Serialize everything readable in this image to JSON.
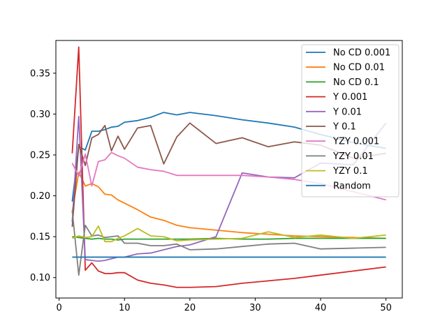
{
  "chart_data": {
    "type": "line",
    "title": "",
    "xlabel": "",
    "ylabel": "",
    "xlim": [
      -0.5,
      52.5
    ],
    "ylim": [
      0.075,
      0.39
    ],
    "xticks": [
      0,
      10,
      20,
      30,
      40,
      50
    ],
    "yticks": [
      0.1,
      0.15,
      0.2,
      0.25,
      0.3,
      0.35
    ],
    "grid": false,
    "legend_position": "top-right",
    "series": [
      {
        "name": "No CD 0.001",
        "color": "#1f77b4",
        "x": [
          2,
          3,
          4,
          5,
          6,
          7,
          8,
          9,
          10,
          12,
          14,
          16,
          18,
          20,
          24,
          28,
          32,
          36,
          40,
          45,
          50
        ],
        "y": [
          0.193,
          0.26,
          0.256,
          0.279,
          0.279,
          0.281,
          0.284,
          0.285,
          0.29,
          0.292,
          0.296,
          0.302,
          0.299,
          0.302,
          0.298,
          0.293,
          0.289,
          0.284,
          0.275,
          0.265,
          0.258
        ]
      },
      {
        "name": "No CD 0.01",
        "color": "#ff7f0e",
        "x": [
          2,
          3,
          4,
          5,
          6,
          7,
          8,
          9,
          10,
          12,
          14,
          16,
          18,
          20,
          24,
          28,
          32,
          36,
          40,
          45,
          50
        ],
        "y": [
          0.18,
          0.229,
          0.212,
          0.215,
          0.211,
          0.202,
          0.201,
          0.195,
          0.191,
          0.183,
          0.174,
          0.17,
          0.164,
          0.161,
          0.158,
          0.155,
          0.153,
          0.151,
          0.15,
          0.149,
          0.148
        ]
      },
      {
        "name": "No CD 0.1",
        "color": "#2ca02c",
        "x": [
          2,
          3,
          4,
          5,
          6,
          7,
          8,
          9,
          10,
          12,
          14,
          16,
          18,
          20,
          24,
          28,
          32,
          36,
          40,
          45,
          50
        ],
        "y": [
          0.15,
          0.149,
          0.148,
          0.147,
          0.148,
          0.147,
          0.147,
          0.146,
          0.147,
          0.147,
          0.147,
          0.147,
          0.147,
          0.147,
          0.148,
          0.147,
          0.147,
          0.148,
          0.148,
          0.148,
          0.148
        ]
      },
      {
        "name": "Y 0.001",
        "color": "#d62728",
        "x": [
          2,
          3,
          4,
          5,
          6,
          7,
          8,
          9,
          10,
          12,
          14,
          16,
          18,
          20,
          24,
          28,
          32,
          36,
          40,
          45,
          50
        ],
        "y": [
          0.252,
          0.382,
          0.109,
          0.118,
          0.108,
          0.105,
          0.105,
          0.106,
          0.106,
          0.097,
          0.093,
          0.091,
          0.088,
          0.088,
          0.089,
          0.093,
          0.096,
          0.099,
          0.103,
          0.108,
          0.113
        ]
      },
      {
        "name": "Y 0.01",
        "color": "#9467bd",
        "x": [
          2,
          3,
          4,
          5,
          6,
          7,
          8,
          9,
          10,
          12,
          14,
          16,
          18,
          20,
          24,
          28,
          32,
          36,
          40,
          45,
          50
        ],
        "y": [
          0.168,
          0.297,
          0.122,
          0.121,
          0.12,
          0.121,
          0.123,
          0.125,
          0.125,
          0.129,
          0.13,
          0.134,
          0.138,
          0.14,
          0.15,
          0.228,
          0.223,
          0.222,
          0.24,
          0.238,
          0.289
        ]
      },
      {
        "name": "Y 0.1",
        "color": "#8c564b",
        "x": [
          2,
          3,
          4,
          5,
          6,
          7,
          8,
          9,
          10,
          12,
          14,
          16,
          18,
          20,
          24,
          28,
          32,
          36,
          40,
          45,
          50
        ],
        "y": [
          0.162,
          0.263,
          0.237,
          0.271,
          0.275,
          0.286,
          0.255,
          0.273,
          0.257,
          0.283,
          0.286,
          0.239,
          0.272,
          0.289,
          0.264,
          0.271,
          0.26,
          0.266,
          0.262,
          0.246,
          0.252
        ]
      },
      {
        "name": "YZY 0.001",
        "color": "#e377c2",
        "x": [
          2,
          3,
          4,
          5,
          6,
          7,
          8,
          9,
          10,
          12,
          14,
          16,
          18,
          20,
          24,
          28,
          32,
          36,
          40,
          45,
          50
        ],
        "y": [
          0.24,
          0.224,
          0.251,
          0.212,
          0.242,
          0.244,
          0.253,
          0.249,
          0.246,
          0.235,
          0.232,
          0.23,
          0.225,
          0.225,
          0.225,
          0.225,
          0.223,
          0.22,
          0.215,
          0.205,
          0.195
        ]
      },
      {
        "name": "YZY 0.01",
        "color": "#7f7f7f",
        "x": [
          2,
          3,
          4,
          5,
          6,
          7,
          8,
          9,
          10,
          12,
          14,
          16,
          18,
          20,
          24,
          28,
          32,
          36,
          40,
          45,
          50
        ],
        "y": [
          0.182,
          0.103,
          0.164,
          0.151,
          0.152,
          0.149,
          0.15,
          0.151,
          0.142,
          0.142,
          0.139,
          0.139,
          0.141,
          0.134,
          0.135,
          0.138,
          0.141,
          0.142,
          0.135,
          0.136,
          0.137
        ]
      },
      {
        "name": "YZY 0.1",
        "color": "#bcbd22",
        "x": [
          2,
          3,
          4,
          5,
          6,
          7,
          8,
          9,
          10,
          12,
          14,
          16,
          18,
          20,
          24,
          28,
          32,
          36,
          40,
          45,
          50
        ],
        "y": [
          0.148,
          0.151,
          0.149,
          0.15,
          0.163,
          0.144,
          0.144,
          0.148,
          0.151,
          0.16,
          0.151,
          0.15,
          0.145,
          0.146,
          0.147,
          0.148,
          0.156,
          0.149,
          0.152,
          0.148,
          0.152
        ]
      },
      {
        "name": "Random",
        "color": "#1f77b4",
        "x": [
          2,
          50
        ],
        "y": [
          0.125,
          0.125
        ]
      }
    ]
  }
}
